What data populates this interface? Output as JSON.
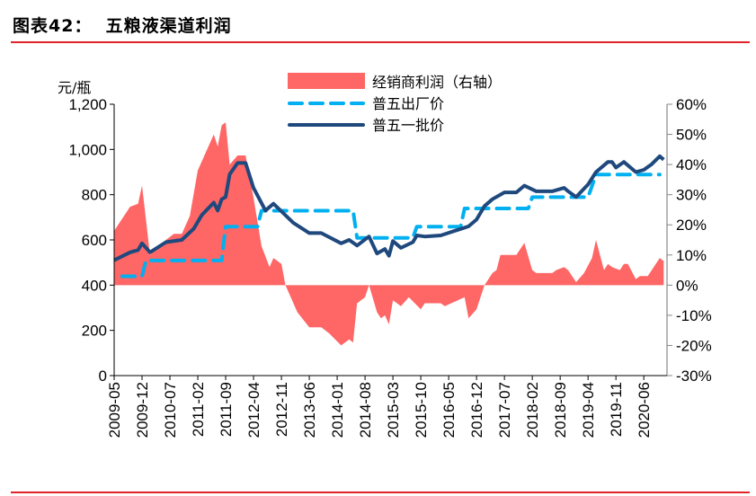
{
  "header": {
    "title": "图表42：  五粮液渠道利润"
  },
  "chart_data": {
    "type": "line+area",
    "left_axis": {
      "label": "元/瓶",
      "ylim": [
        0,
        1200
      ],
      "ticks": [
        "0",
        "200",
        "400",
        "600",
        "800",
        "1,000",
        "1,200"
      ],
      "tick_values": [
        0,
        200,
        400,
        600,
        800,
        1000,
        1200
      ]
    },
    "right_axis": {
      "ylim": [
        -30,
        60
      ],
      "ticks": [
        "-30%",
        "-20%",
        "-10%",
        "0%",
        "10%",
        "20%",
        "30%",
        "40%",
        "50%",
        "60%"
      ],
      "tick_values": [
        -30,
        -20,
        -10,
        0,
        10,
        20,
        30,
        40,
        50,
        60
      ]
    },
    "x_ticks": [
      "2009-05",
      "2009-12",
      "2010-07",
      "2011-02",
      "2011-09",
      "2012-04",
      "2012-11",
      "2013-06",
      "2014-01",
      "2014-08",
      "2015-03",
      "2015-10",
      "2016-05",
      "2016-12",
      "2017-07",
      "2018-02",
      "2018-09",
      "2019-04",
      "2019-11",
      "2020-06"
    ],
    "legend_position": "top-center",
    "series": [
      {
        "name": "经销商利润（右轴）",
        "type": "area",
        "axis": "right",
        "color": "#ff6666",
        "points": [
          [
            "2009-05",
            18
          ],
          [
            "2009-09",
            26
          ],
          [
            "2009-11",
            27
          ],
          [
            "2009-12",
            33
          ],
          [
            "2010-02",
            10
          ],
          [
            "2010-06",
            15
          ],
          [
            "2010-08",
            17
          ],
          [
            "2010-10",
            17
          ],
          [
            "2010-12",
            23
          ],
          [
            "2011-02",
            38
          ],
          [
            "2011-06",
            50
          ],
          [
            "2011-07",
            46
          ],
          [
            "2011-08",
            53
          ],
          [
            "2011-09",
            54
          ],
          [
            "2011-10",
            40
          ],
          [
            "2011-12",
            43
          ],
          [
            "2012-02",
            43
          ],
          [
            "2012-04",
            29
          ],
          [
            "2012-06",
            13
          ],
          [
            "2012-08",
            6
          ],
          [
            "2012-09",
            9
          ],
          [
            "2012-11",
            7
          ],
          [
            "2012-12",
            0
          ],
          [
            "2013-03",
            -9
          ],
          [
            "2013-06",
            -14
          ],
          [
            "2013-09",
            -14
          ],
          [
            "2013-11",
            -16
          ],
          [
            "2014-02",
            -20
          ],
          [
            "2014-04",
            -18
          ],
          [
            "2014-05",
            -19
          ],
          [
            "2014-06",
            -6
          ],
          [
            "2014-08",
            -4
          ],
          [
            "2014-09",
            0
          ],
          [
            "2014-11",
            -9
          ],
          [
            "2014-12",
            -11
          ],
          [
            "2015-01",
            -10
          ],
          [
            "2015-02",
            -13
          ],
          [
            "2015-03",
            -5
          ],
          [
            "2015-05",
            -7
          ],
          [
            "2015-07",
            -4
          ],
          [
            "2015-10",
            -8
          ],
          [
            "2015-11",
            -6
          ],
          [
            "2016-03",
            -6
          ],
          [
            "2016-04",
            -7
          ],
          [
            "2016-09",
            -4
          ],
          [
            "2016-10",
            -11
          ],
          [
            "2016-12",
            -8
          ],
          [
            "2017-02",
            0
          ],
          [
            "2017-03",
            2
          ],
          [
            "2017-04",
            4
          ],
          [
            "2017-05",
            5
          ],
          [
            "2017-06",
            10
          ],
          [
            "2017-10",
            10
          ],
          [
            "2017-12",
            14
          ],
          [
            "2018-02",
            5
          ],
          [
            "2018-03",
            4
          ],
          [
            "2018-07",
            4
          ],
          [
            "2018-08",
            5
          ],
          [
            "2018-10",
            6
          ],
          [
            "2018-11",
            5
          ],
          [
            "2019-01",
            1
          ],
          [
            "2019-03",
            4
          ],
          [
            "2019-05",
            9
          ],
          [
            "2019-06",
            15
          ],
          [
            "2019-08",
            5
          ],
          [
            "2019-09",
            7
          ],
          [
            "2019-10",
            6
          ],
          [
            "2019-12",
            5
          ],
          [
            "2020-01",
            7
          ],
          [
            "2020-02",
            7
          ],
          [
            "2020-04",
            2
          ],
          [
            "2020-05",
            3
          ],
          [
            "2020-07",
            3
          ],
          [
            "2020-08",
            5
          ],
          [
            "2020-10",
            9
          ],
          [
            "2020-11",
            8
          ]
        ]
      },
      {
        "name": "普五出厂价",
        "type": "line",
        "style": "dashed",
        "axis": "left",
        "color": "#00b0f0",
        "points": [
          [
            "2009-07",
            439
          ],
          [
            "2009-12",
            439
          ],
          [
            "2010-01",
            509
          ],
          [
            "2011-08",
            509
          ],
          [
            "2011-09",
            659
          ],
          [
            "2012-05",
            659
          ],
          [
            "2012-06",
            729
          ],
          [
            "2014-05",
            729
          ],
          [
            "2014-06",
            609
          ],
          [
            "2015-08",
            609
          ],
          [
            "2015-09",
            659
          ],
          [
            "2016-08",
            659
          ],
          [
            "2016-09",
            739
          ],
          [
            "2018-01",
            739
          ],
          [
            "2018-02",
            789
          ],
          [
            "2019-04",
            789
          ],
          [
            "2019-06",
            889
          ],
          [
            "2020-10",
            889
          ]
        ]
      },
      {
        "name": "普五一批价",
        "type": "line",
        "style": "solid",
        "axis": "left",
        "color": "#1f497d",
        "points": [
          [
            "2009-05",
            510
          ],
          [
            "2009-09",
            545
          ],
          [
            "2009-11",
            555
          ],
          [
            "2009-12",
            585
          ],
          [
            "2010-02",
            545
          ],
          [
            "2010-06",
            590
          ],
          [
            "2010-10",
            600
          ],
          [
            "2011-01",
            650
          ],
          [
            "2011-03",
            710
          ],
          [
            "2011-06",
            765
          ],
          [
            "2011-07",
            730
          ],
          [
            "2011-08",
            780
          ],
          [
            "2011-09",
            790
          ],
          [
            "2011-10",
            890
          ],
          [
            "2011-12",
            940
          ],
          [
            "2012-02",
            940
          ],
          [
            "2012-04",
            830
          ],
          [
            "2012-07",
            730
          ],
          [
            "2012-09",
            760
          ],
          [
            "2013-02",
            675
          ],
          [
            "2013-06",
            630
          ],
          [
            "2013-09",
            630
          ],
          [
            "2014-02",
            585
          ],
          [
            "2014-04",
            600
          ],
          [
            "2014-06",
            575
          ],
          [
            "2014-09",
            615
          ],
          [
            "2014-11",
            540
          ],
          [
            "2015-01",
            560
          ],
          [
            "2015-02",
            530
          ],
          [
            "2015-03",
            595
          ],
          [
            "2015-05",
            565
          ],
          [
            "2015-08",
            590
          ],
          [
            "2015-09",
            620
          ],
          [
            "2015-11",
            615
          ],
          [
            "2016-03",
            620
          ],
          [
            "2016-10",
            660
          ],
          [
            "2016-12",
            690
          ],
          [
            "2017-02",
            750
          ],
          [
            "2017-04",
            780
          ],
          [
            "2017-07",
            810
          ],
          [
            "2017-10",
            810
          ],
          [
            "2017-12",
            840
          ],
          [
            "2018-03",
            815
          ],
          [
            "2018-07",
            815
          ],
          [
            "2018-10",
            830
          ],
          [
            "2018-11",
            815
          ],
          [
            "2019-01",
            790
          ],
          [
            "2019-04",
            845
          ],
          [
            "2019-06",
            900
          ],
          [
            "2019-09",
            945
          ],
          [
            "2019-10",
            945
          ],
          [
            "2019-11",
            920
          ],
          [
            "2020-01",
            945
          ],
          [
            "2020-04",
            900
          ],
          [
            "2020-06",
            910
          ],
          [
            "2020-08",
            935
          ],
          [
            "2020-10",
            970
          ],
          [
            "2020-11",
            955
          ]
        ]
      }
    ]
  }
}
